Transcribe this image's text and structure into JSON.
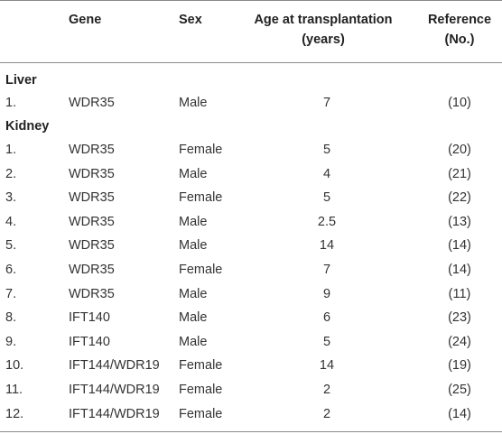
{
  "headers": {
    "gene": "Gene",
    "sex": "Sex",
    "age_line1": "Age at transplantation",
    "age_line2": "(years)",
    "ref_line1": "Reference",
    "ref_line2": "(No.)"
  },
  "sections": {
    "liver": {
      "title": "Liver",
      "rows": [
        {
          "num": "1.",
          "gene": "WDR35",
          "sex": "Male",
          "age": "7",
          "ref": "(10)"
        }
      ]
    },
    "kidney": {
      "title": "Kidney",
      "rows": [
        {
          "num": "1.",
          "gene": "WDR35",
          "sex": "Female",
          "age": "5",
          "ref": "(20)"
        },
        {
          "num": "2.",
          "gene": "WDR35",
          "sex": "Male",
          "age": "4",
          "ref": "(21)"
        },
        {
          "num": "3.",
          "gene": "WDR35",
          "sex": "Female",
          "age": "5",
          "ref": "(22)"
        },
        {
          "num": "4.",
          "gene": "WDR35",
          "sex": "Male",
          "age": "2.5",
          "ref": "(13)"
        },
        {
          "num": "5.",
          "gene": "WDR35",
          "sex": "Male",
          "age": "14",
          "ref": "(14)"
        },
        {
          "num": "6.",
          "gene": "WDR35",
          "sex": "Female",
          "age": "7",
          "ref": "(14)"
        },
        {
          "num": "7.",
          "gene": "WDR35",
          "sex": "Male",
          "age": "9",
          "ref": "(11)"
        },
        {
          "num": "8.",
          "gene": "IFT140",
          "sex": "Male",
          "age": "6",
          "ref": "(23)"
        },
        {
          "num": "9.",
          "gene": "IFT140",
          "sex": "Male",
          "age": "5",
          "ref": "(24)"
        },
        {
          "num": "10.",
          "gene": "IFT144/WDR19",
          "sex": "Female",
          "age": "14",
          "ref": "(19)"
        },
        {
          "num": "11.",
          "gene": "IFT144/WDR19",
          "sex": "Female",
          "age": "2",
          "ref": "(25)"
        },
        {
          "num": "12.",
          "gene": "IFT144/WDR19",
          "sex": "Female",
          "age": "2",
          "ref": "(14)"
        }
      ]
    }
  }
}
